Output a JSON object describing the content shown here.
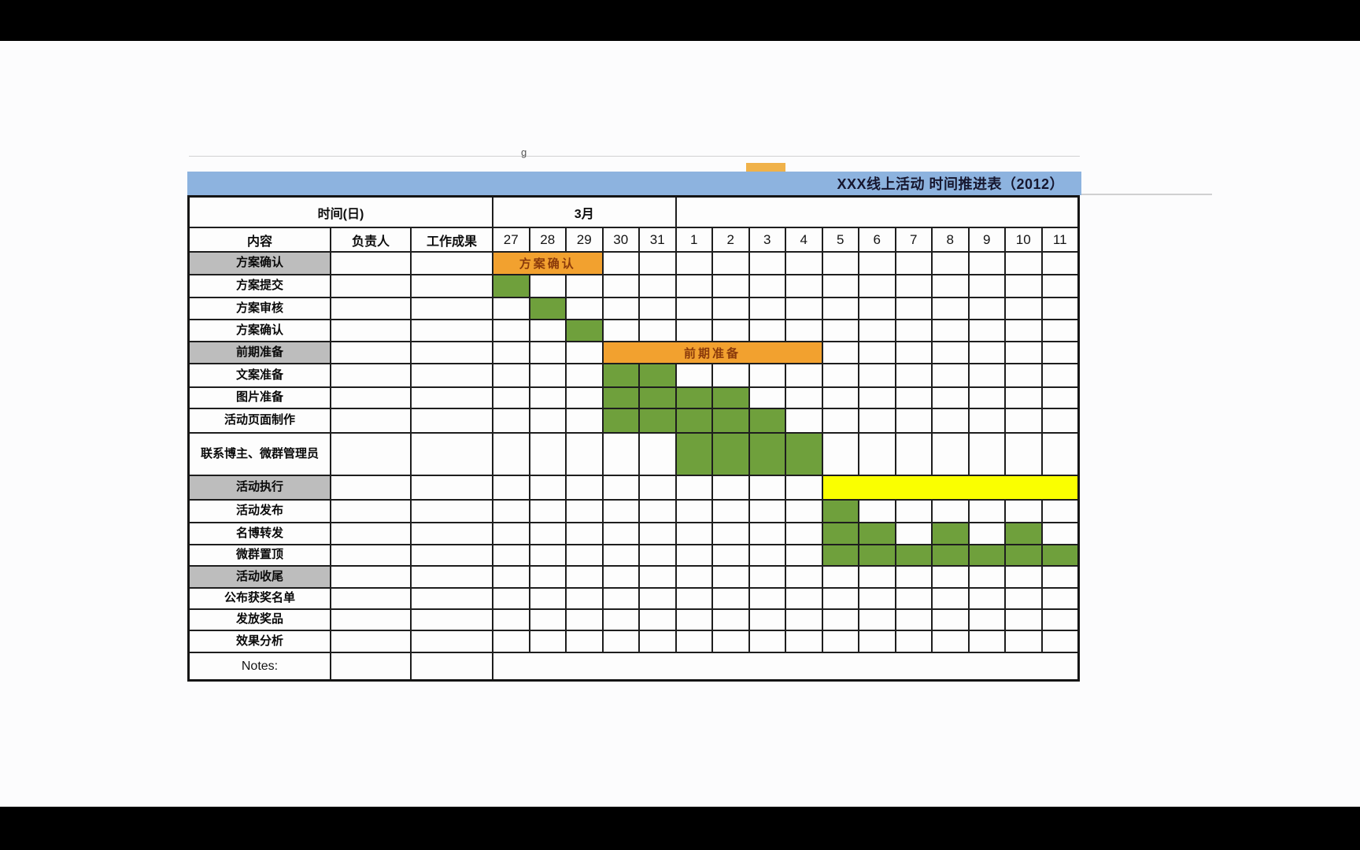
{
  "title": "XXX线上活动 时间推进表（2012）",
  "artifacts": {
    "stray_text": "g"
  },
  "colors": {
    "header_blue": "#8DB3DF",
    "section_gray": "#BDBDBD",
    "bar_orange": "#F2A12F",
    "bar_orange_text": "#8A3A0B",
    "bar_green": "#6FA03C",
    "bar_yellow": "#FAFF00",
    "grid_line": "#1E1E1E",
    "letterbox_black": "#000000"
  },
  "chart_data": {
    "type": "gantt",
    "title": "XXX线上活动 时间推进表（2012）",
    "columns": {
      "content": "内容",
      "owner": "负责人",
      "deliverable": "工作成果"
    },
    "time_header": {
      "unit_label": "时间(日)",
      "month_label": "3月",
      "month_days": [
        "27",
        "28",
        "29",
        "30",
        "31"
      ],
      "days": [
        "27",
        "28",
        "29",
        "30",
        "31",
        "1",
        "2",
        "3",
        "4",
        "5",
        "6",
        "7",
        "8",
        "9",
        "10",
        "11"
      ]
    },
    "rows": [
      {
        "label": "方案确认",
        "type": "section",
        "bar": {
          "color": "orange",
          "label": "方案确认",
          "start_day": "27",
          "end_day": "29",
          "start": 0,
          "span": 3
        }
      },
      {
        "label": "方案提交",
        "type": "task",
        "marked_days": [
          "27"
        ],
        "cells": [
          0
        ]
      },
      {
        "label": "方案审核",
        "type": "task",
        "marked_days": [
          "28"
        ],
        "cells": [
          1
        ]
      },
      {
        "label": "方案确认",
        "type": "task",
        "marked_days": [
          "29"
        ],
        "cells": [
          2
        ]
      },
      {
        "label": "前期准备",
        "type": "section",
        "bar": {
          "color": "orange",
          "label": "前期准备",
          "start_day": "30",
          "end_day": "4",
          "start": 3,
          "span": 6
        }
      },
      {
        "label": "文案准备",
        "type": "task",
        "marked_days": [
          "30",
          "31"
        ],
        "cells": [
          3,
          4
        ]
      },
      {
        "label": "图片准备",
        "type": "task",
        "marked_days": [
          "30",
          "31",
          "1",
          "2"
        ],
        "cells": [
          3,
          4,
          5,
          6
        ]
      },
      {
        "label": "活动页面制作",
        "type": "task",
        "marked_days": [
          "30",
          "31",
          "1",
          "2",
          "3"
        ],
        "cells": [
          3,
          4,
          5,
          6,
          7
        ]
      },
      {
        "label": "联系博主、微群管理员",
        "type": "task",
        "marked_days": [
          "1",
          "2",
          "3",
          "4"
        ],
        "cells": [
          5,
          6,
          7,
          8
        ]
      },
      {
        "label": "活动执行",
        "type": "section",
        "bar": {
          "color": "yellow",
          "label": "",
          "start_day": "5",
          "end_day": "11",
          "start": 9,
          "span": 7
        }
      },
      {
        "label": "活动发布",
        "type": "task",
        "marked_days": [
          "5"
        ],
        "cells": [
          9
        ]
      },
      {
        "label": "名博转发",
        "type": "task",
        "marked_days": [
          "5",
          "6",
          "8",
          "10"
        ],
        "cells": [
          9,
          10,
          12,
          14
        ]
      },
      {
        "label": "微群置顶",
        "type": "task",
        "marked_days": [
          "5",
          "6",
          "7",
          "8",
          "9",
          "10",
          "11"
        ],
        "cells": [
          9,
          10,
          11,
          12,
          13,
          14,
          15
        ]
      },
      {
        "label": "活动收尾",
        "type": "section"
      },
      {
        "label": "公布获奖名单",
        "type": "task",
        "marked_days": [],
        "cells": []
      },
      {
        "label": "发放奖品",
        "type": "task",
        "marked_days": [],
        "cells": []
      },
      {
        "label": "效果分析",
        "type": "task",
        "marked_days": [],
        "cells": []
      },
      {
        "label": "Notes:",
        "type": "notes"
      }
    ]
  }
}
